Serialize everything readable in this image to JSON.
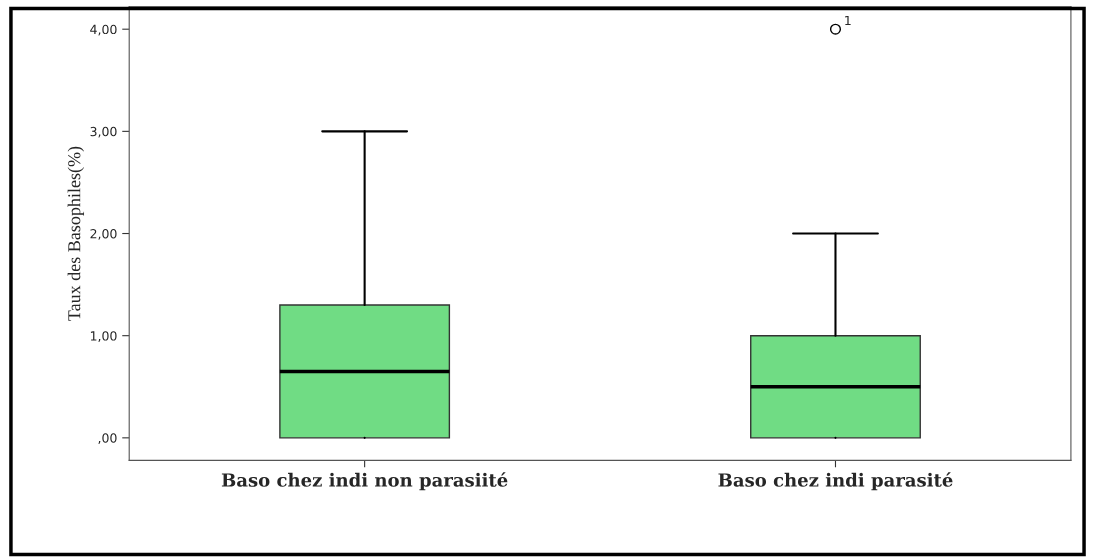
{
  "chart_data": {
    "type": "box",
    "ylabel": "Taux des Basophiles(%)",
    "categories": [
      "Baso chez indi non parasiité",
      "Baso chez indi parasité"
    ],
    "boxes": [
      {
        "low": 0,
        "q1": 0,
        "median": 0.65,
        "q3": 1.3,
        "high": 3.0
      },
      {
        "low": 0,
        "q1": 0,
        "median": 0.5,
        "q3": 1.0,
        "high": 2.0,
        "outliers": [
          4.0
        ]
      }
    ],
    "color": "#70dc84",
    "ylim": [
      -0.22,
      4.22
    ],
    "yticks": [
      {
        "value": 0,
        "label": ",00"
      },
      {
        "value": 1,
        "label": "1,00"
      },
      {
        "value": 2,
        "label": "2,00"
      },
      {
        "value": 3,
        "label": "3,00"
      },
      {
        "value": 4,
        "label": "4,00"
      }
    ],
    "annotations": [
      "1"
    ],
    "grid": false
  }
}
